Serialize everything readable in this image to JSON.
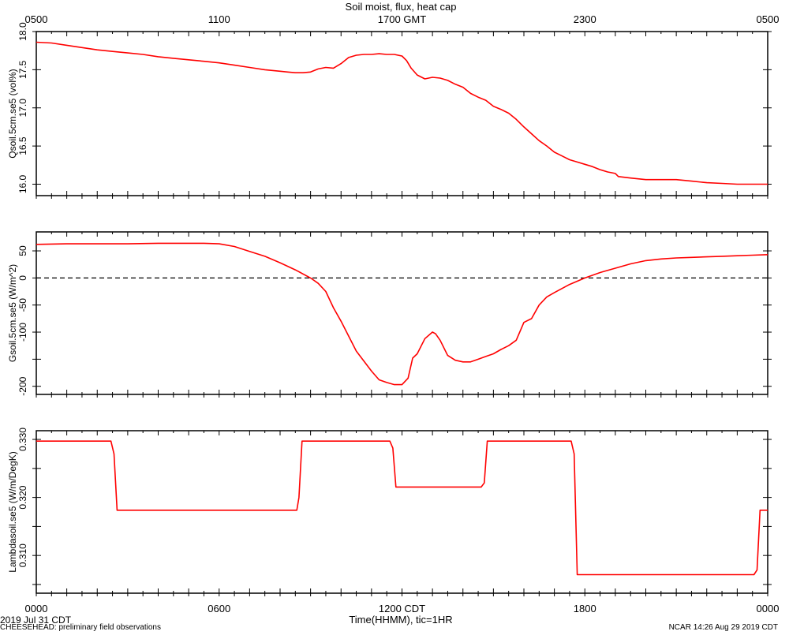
{
  "chart_data": {
    "type": "line",
    "title": "Soil moist, flux, heat cap",
    "top_axis": {
      "label": "",
      "ticks": [
        "0500",
        "1100",
        "1700 GMT",
        "2300",
        "0500"
      ]
    },
    "bottom_axis": {
      "label": "Time(HHMM), tic=1HR",
      "ticks": [
        "0000",
        "0600",
        "1200 CDT",
        "1800",
        "0000"
      ],
      "range_hours": [
        0,
        24
      ]
    },
    "date_label": "2019 Jul 31 CDT",
    "footer_left": "CHEESEHEAD: preliminary field observations",
    "footer_right": "NCAR 14:26 Aug 29 2019 CDT",
    "line_color": "#ff0000",
    "panels": [
      {
        "ylabel": "Qsoil.5cm.se5 (vol%)",
        "ylim": [
          15.85,
          18.0
        ],
        "yticks": [
          16.0,
          16.5,
          17.0,
          17.5,
          18.0
        ],
        "ytick_labels": [
          "16.0",
          "16.5",
          "17.0",
          "17.5",
          "18.0"
        ],
        "zero_line": false,
        "series": [
          {
            "x": [
              0,
              0.5,
              1,
              1.5,
              2,
              2.5,
              3,
              3.5,
              4,
              4.5,
              5,
              5.5,
              6,
              6.5,
              7,
              7.5,
              8,
              8.25,
              8.5,
              8.75,
              9,
              9.25,
              9.5,
              9.75,
              10,
              10.25,
              10.5,
              10.75,
              11,
              11.25,
              11.5,
              11.75,
              12,
              12.15,
              12.3,
              12.5,
              12.75,
              13,
              13.25,
              13.5,
              13.75,
              14,
              14.25,
              14.5,
              14.75,
              15,
              15.25,
              15.5,
              15.75,
              16,
              16.25,
              16.5,
              16.75,
              17,
              17.25,
              17.5,
              17.75,
              18,
              18.25,
              18.5,
              18.75,
              19,
              19.1,
              19.5,
              19.75,
              20,
              20.5,
              21,
              21.5,
              22,
              22.5,
              23,
              23.5,
              24
            ],
            "y": [
              17.86,
              17.85,
              17.82,
              17.79,
              17.76,
              17.74,
              17.72,
              17.7,
              17.67,
              17.65,
              17.63,
              17.61,
              17.59,
              17.56,
              17.53,
              17.5,
              17.48,
              17.47,
              17.46,
              17.46,
              17.47,
              17.51,
              17.53,
              17.52,
              17.58,
              17.66,
              17.69,
              17.7,
              17.7,
              17.71,
              17.7,
              17.7,
              17.68,
              17.62,
              17.52,
              17.43,
              17.38,
              17.4,
              17.39,
              17.36,
              17.31,
              17.27,
              17.19,
              17.14,
              17.1,
              17.02,
              16.98,
              16.93,
              16.85,
              16.75,
              16.66,
              16.57,
              16.5,
              16.42,
              16.37,
              16.32,
              16.29,
              16.26,
              16.23,
              16.19,
              16.16,
              16.14,
              16.1,
              16.08,
              16.07,
              16.06,
              16.06,
              16.06,
              16.04,
              16.02,
              16.01,
              16.0,
              16.0,
              16.0
            ]
          }
        ]
      },
      {
        "ylabel": "Gsoil.5cm.se5 (W/m^2)",
        "ylim": [
          -215,
          85
        ],
        "yticks": [
          -200,
          -150,
          -100,
          -50,
          0,
          50
        ],
        "ytick_labels": [
          "-200",
          "",
          "-100",
          "-50",
          "0",
          "50"
        ],
        "zero_line": true,
        "series": [
          {
            "x": [
              0,
              1,
              2,
              3,
              4,
              5,
              5.5,
              6,
              6.5,
              7,
              7.5,
              8,
              8.5,
              9,
              9.25,
              9.5,
              9.75,
              10,
              10.5,
              11,
              11.25,
              11.5,
              11.75,
              12,
              12.2,
              12.35,
              12.5,
              12.75,
              13,
              13.1,
              13.25,
              13.5,
              13.75,
              14,
              14.25,
              14.5,
              14.75,
              15,
              15.25,
              15.5,
              15.75,
              16,
              16.25,
              16.5,
              16.75,
              17,
              17.5,
              18,
              18.5,
              19,
              19.5,
              20,
              20.5,
              21,
              21.5,
              22,
              22.5,
              23,
              23.5,
              24
            ],
            "y": [
              62,
              63,
              63,
              63,
              64,
              64,
              64,
              63,
              58,
              49,
              40,
              28,
              15,
              0,
              -10,
              -25,
              -55,
              -80,
              -135,
              -172,
              -188,
              -193,
              -197,
              -197,
              -185,
              -148,
              -140,
              -112,
              -100,
              -103,
              -115,
              -143,
              -152,
              -155,
              -155,
              -150,
              -145,
              -140,
              -132,
              -125,
              -115,
              -82,
              -75,
              -50,
              -35,
              -27,
              -12,
              0,
              10,
              18,
              26,
              32,
              35,
              37,
              38,
              39,
              40,
              41,
              42,
              43
            ]
          }
        ]
      },
      {
        "ylabel": "Lambdasoil.se5 (W/m/DegK)",
        "ylim": [
          0.3035,
          0.3315
        ],
        "yticks": [
          0.305,
          0.31,
          0.315,
          0.32,
          0.325,
          0.33
        ],
        "ytick_labels": [
          "",
          "0.310",
          "",
          "0.320",
          "",
          "0.330"
        ],
        "zero_line": false,
        "series": [
          {
            "x": [
              0,
              2.45,
              2.55,
              2.65,
              8.55,
              8.62,
              8.72,
              11.6,
              11.7,
              11.8,
              14.6,
              14.7,
              14.8,
              17.55,
              17.65,
              17.75,
              23.55,
              23.65,
              23.75,
              24
            ],
            "y": [
              0.3297,
              0.3297,
              0.3275,
              0.3178,
              0.3178,
              0.32,
              0.3297,
              0.3297,
              0.3285,
              0.3218,
              0.3218,
              0.3225,
              0.3297,
              0.3297,
              0.3275,
              0.3067,
              0.3067,
              0.3075,
              0.3178,
              0.3178
            ]
          }
        ]
      }
    ]
  }
}
